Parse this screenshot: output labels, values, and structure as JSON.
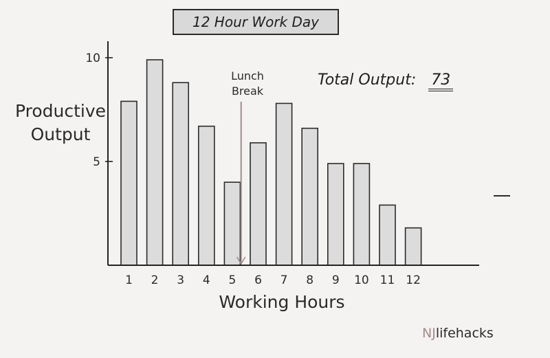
{
  "chart_data": {
    "type": "bar",
    "title": "12 Hour Work Day",
    "xlabel": "Working Hours",
    "ylabel": "Productive Output",
    "categories": [
      "1",
      "2",
      "3",
      "4",
      "5",
      "6",
      "7",
      "8",
      "9",
      "10",
      "11",
      "12"
    ],
    "values": [
      7.9,
      9.9,
      8.8,
      6.7,
      4.0,
      5.9,
      7.8,
      6.6,
      4.9,
      4.9,
      2.9,
      1.8
    ],
    "ylim": [
      0,
      10
    ],
    "yticks": [
      "5",
      "10"
    ],
    "grid": false,
    "bar_color": "#dcdcdc",
    "bar_stroke": "#2a2a2a",
    "annotations": {
      "lunch_break_label": "Lunch Break",
      "lunch_line_color": "#a08c8c",
      "total_label": "Total Output:",
      "total_value": "73"
    }
  },
  "watermark": {
    "nj": "NJ",
    "rest": "lifehacks",
    "nj_color": "#a58a8a"
  }
}
